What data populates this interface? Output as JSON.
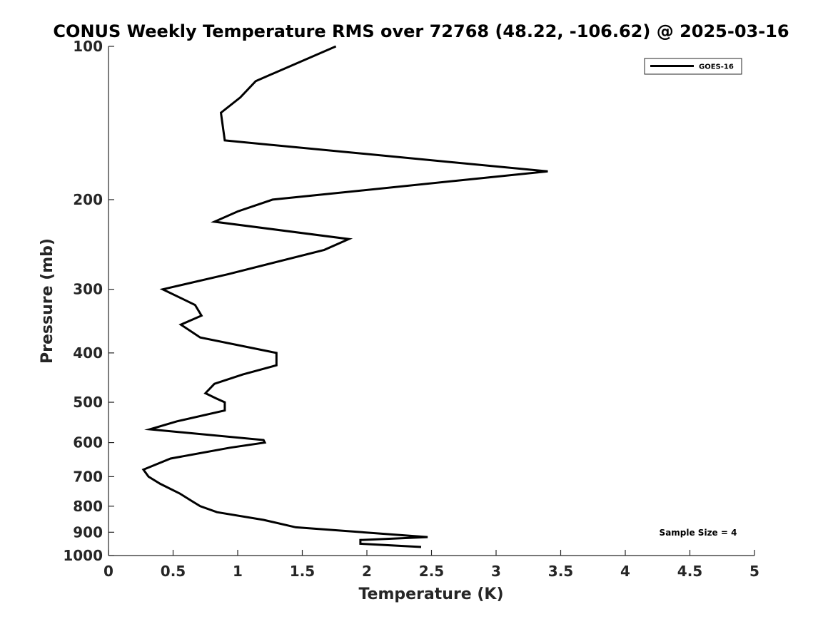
{
  "chart_data": {
    "type": "line",
    "title": "CONUS Weekly Temperature RMS over 72768 (48.22, -106.62) @ 2025-03-16",
    "xlabel": "Temperature (K)",
    "ylabel": "Pressure (mb)",
    "xlim": [
      0,
      5
    ],
    "ylim": [
      100,
      1000
    ],
    "y_scale": "log",
    "y_reversed": true,
    "x_ticks": [
      "0",
      "0.5",
      "1",
      "1.5",
      "2",
      "2.5",
      "3",
      "3.5",
      "4",
      "4.5",
      "5"
    ],
    "y_ticks": [
      "100",
      "200",
      "300",
      "400",
      "500",
      "600",
      "700",
      "800",
      "900",
      "1000"
    ],
    "grid": false,
    "legend": {
      "position": "top-right"
    },
    "series": [
      {
        "name": "GOES-16",
        "color": "#000000",
        "points": [
          [
            1.76,
            100
          ],
          [
            1.14,
            117
          ],
          [
            1.02,
            126
          ],
          [
            0.87,
            135
          ],
          [
            0.9,
            153
          ],
          [
            3.4,
            176
          ],
          [
            1.27,
            200
          ],
          [
            1.0,
            211
          ],
          [
            0.82,
            221
          ],
          [
            1.86,
            239
          ],
          [
            1.67,
            251
          ],
          [
            0.93,
            280
          ],
          [
            0.42,
            300
          ],
          [
            0.67,
            322
          ],
          [
            0.72,
            338
          ],
          [
            0.56,
            352
          ],
          [
            0.71,
            373
          ],
          [
            1.3,
            400
          ],
          [
            1.3,
            423
          ],
          [
            1.04,
            441
          ],
          [
            0.82,
            460
          ],
          [
            0.75,
            480
          ],
          [
            0.83,
            491
          ],
          [
            0.9,
            500
          ],
          [
            0.9,
            519
          ],
          [
            0.53,
            545
          ],
          [
            0.32,
            565
          ],
          [
            1.2,
            593
          ],
          [
            1.21,
            600
          ],
          [
            0.94,
            614
          ],
          [
            0.48,
            645
          ],
          [
            0.27,
            678
          ],
          [
            0.31,
            700
          ],
          [
            0.4,
            723
          ],
          [
            0.55,
            755
          ],
          [
            0.65,
            783
          ],
          [
            0.71,
            800
          ],
          [
            0.84,
            822
          ],
          [
            1.2,
            851
          ],
          [
            1.45,
            880
          ],
          [
            2.47,
            920
          ],
          [
            1.95,
            932
          ],
          [
            1.95,
            948
          ],
          [
            2.42,
            962
          ]
        ]
      }
    ],
    "annotations": [
      {
        "text": "Sample Size = 4"
      }
    ]
  }
}
